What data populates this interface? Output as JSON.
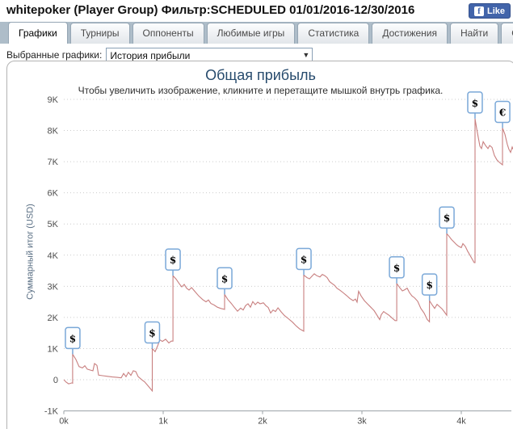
{
  "header": {
    "title": "whitepoker (Player Group) Фильтр:SCHEDULED 01/01/2016-12/30/2016",
    "fb_like": {
      "f": "f",
      "label": "Like"
    }
  },
  "tabs": [
    {
      "label": "Графики",
      "active": true
    },
    {
      "label": "Турниры",
      "active": false
    },
    {
      "label": "Оппоненты",
      "active": false
    },
    {
      "label": "Любимые игры",
      "active": false
    },
    {
      "label": "Статистика",
      "active": false
    },
    {
      "label": "Достижения",
      "active": false
    },
    {
      "label": "Найти",
      "active": false
    },
    {
      "label": "Опубликовать",
      "active": false
    }
  ],
  "filter": {
    "label": "Выбранные графики:",
    "selected": "История прибыли",
    "arrow": "▼"
  },
  "chart_data": {
    "type": "line",
    "title": "Общая прибыль",
    "subtitle": "Чтобы увеличить изображение, кликните и перетащите мышкой внутрь графика.",
    "ylabel": "Суммарный итог (USD)",
    "xlim": [
      0,
      4520
    ],
    "ylim": [
      -1000,
      9000
    ],
    "grid": "dotted",
    "x_ticks": [
      {
        "v": 0,
        "label": "0k"
      },
      {
        "v": 1000,
        "label": "1k"
      },
      {
        "v": 2000,
        "label": "2k"
      },
      {
        "v": 3000,
        "label": "3k"
      },
      {
        "v": 4000,
        "label": "4k"
      }
    ],
    "y_ticks": [
      {
        "v": 9000,
        "label": "9K"
      },
      {
        "v": 8000,
        "label": "8K"
      },
      {
        "v": 7000,
        "label": "7K"
      },
      {
        "v": 6000,
        "label": "6K"
      },
      {
        "v": 5000,
        "label": "5K"
      },
      {
        "v": 4000,
        "label": "4K"
      },
      {
        "v": 3000,
        "label": "3K"
      },
      {
        "v": 2000,
        "label": "2K"
      },
      {
        "v": 1000,
        "label": "1K"
      },
      {
        "v": 0,
        "label": "0"
      },
      {
        "v": -1000,
        "label": "-1K"
      }
    ],
    "line_color": "#c87f7f",
    "marker_border_color": "#7aa8d8",
    "marker_fill_color": "#fdfeff",
    "title_color": "#274b6d",
    "series": [
      {
        "name": "Суммарный итог (USD)",
        "points": [
          [
            0,
            0
          ],
          [
            24,
            -80
          ],
          [
            49,
            -130
          ],
          [
            81,
            -100
          ],
          [
            89,
            -110
          ],
          [
            89,
            820
          ],
          [
            122,
            650
          ],
          [
            154,
            420
          ],
          [
            187,
            380
          ],
          [
            211,
            450
          ],
          [
            236,
            340
          ],
          [
            268,
            310
          ],
          [
            293,
            290
          ],
          [
            309,
            520
          ],
          [
            333,
            460
          ],
          [
            350,
            150
          ],
          [
            390,
            130
          ],
          [
            439,
            110
          ],
          [
            488,
            90
          ],
          [
            537,
            75
          ],
          [
            577,
            60
          ],
          [
            602,
            200
          ],
          [
            626,
            100
          ],
          [
            650,
            240
          ],
          [
            675,
            140
          ],
          [
            699,
            290
          ],
          [
            724,
            260
          ],
          [
            748,
            100
          ],
          [
            781,
            10
          ],
          [
            813,
            -70
          ],
          [
            846,
            -190
          ],
          [
            890,
            -360
          ],
          [
            890,
            1000
          ],
          [
            919,
            900
          ],
          [
            943,
            1080
          ],
          [
            967,
            1280
          ],
          [
            992,
            1230
          ],
          [
            1024,
            1300
          ],
          [
            1057,
            1180
          ],
          [
            1081,
            1240
          ],
          [
            1098,
            1240
          ],
          [
            1098,
            3340
          ],
          [
            1130,
            3230
          ],
          [
            1163,
            3080
          ],
          [
            1187,
            2980
          ],
          [
            1211,
            3060
          ],
          [
            1236,
            2940
          ],
          [
            1260,
            2880
          ],
          [
            1285,
            2960
          ],
          [
            1317,
            2840
          ],
          [
            1358,
            2690
          ],
          [
            1398,
            2570
          ],
          [
            1431,
            2500
          ],
          [
            1455,
            2560
          ],
          [
            1480,
            2450
          ],
          [
            1512,
            2400
          ],
          [
            1545,
            2330
          ],
          [
            1577,
            2290
          ],
          [
            1618,
            2260
          ],
          [
            1618,
            2740
          ],
          [
            1650,
            2580
          ],
          [
            1683,
            2460
          ],
          [
            1715,
            2330
          ],
          [
            1748,
            2200
          ],
          [
            1780,
            2300
          ],
          [
            1805,
            2240
          ],
          [
            1829,
            2380
          ],
          [
            1854,
            2440
          ],
          [
            1878,
            2330
          ],
          [
            1902,
            2510
          ],
          [
            1927,
            2410
          ],
          [
            1951,
            2490
          ],
          [
            1976,
            2440
          ],
          [
            2008,
            2470
          ],
          [
            2033,
            2380
          ],
          [
            2057,
            2320
          ],
          [
            2081,
            2140
          ],
          [
            2106,
            2240
          ],
          [
            2130,
            2190
          ],
          [
            2155,
            2310
          ],
          [
            2187,
            2180
          ],
          [
            2220,
            2060
          ],
          [
            2260,
            1960
          ],
          [
            2301,
            1850
          ],
          [
            2341,
            1720
          ],
          [
            2374,
            1630
          ],
          [
            2415,
            1560
          ],
          [
            2415,
            3360
          ],
          [
            2447,
            3280
          ],
          [
            2472,
            3240
          ],
          [
            2496,
            3320
          ],
          [
            2520,
            3400
          ],
          [
            2545,
            3340
          ],
          [
            2577,
            3300
          ],
          [
            2602,
            3380
          ],
          [
            2626,
            3340
          ],
          [
            2650,
            3280
          ],
          [
            2675,
            3150
          ],
          [
            2699,
            3090
          ],
          [
            2724,
            3030
          ],
          [
            2748,
            2940
          ],
          [
            2781,
            2870
          ],
          [
            2813,
            2790
          ],
          [
            2846,
            2700
          ],
          [
            2878,
            2610
          ],
          [
            2911,
            2540
          ],
          [
            2935,
            2590
          ],
          [
            2951,
            2490
          ],
          [
            2967,
            2840
          ],
          [
            2992,
            2690
          ],
          [
            3024,
            2540
          ],
          [
            3057,
            2430
          ],
          [
            3089,
            2330
          ],
          [
            3122,
            2220
          ],
          [
            3154,
            2060
          ],
          [
            3179,
            1930
          ],
          [
            3195,
            2090
          ],
          [
            3219,
            2190
          ],
          [
            3244,
            2130
          ],
          [
            3268,
            2080
          ],
          [
            3301,
            1990
          ],
          [
            3333,
            1900
          ],
          [
            3350,
            1900
          ],
          [
            3350,
            3090
          ],
          [
            3382,
            2950
          ],
          [
            3407,
            2850
          ],
          [
            3431,
            2890
          ],
          [
            3455,
            2940
          ],
          [
            3480,
            2790
          ],
          [
            3504,
            2690
          ],
          [
            3529,
            2630
          ],
          [
            3561,
            2520
          ],
          [
            3593,
            2290
          ],
          [
            3626,
            2140
          ],
          [
            3658,
            1930
          ],
          [
            3680,
            1860
          ],
          [
            3680,
            2540
          ],
          [
            3707,
            2400
          ],
          [
            3732,
            2290
          ],
          [
            3756,
            2420
          ],
          [
            3780,
            2350
          ],
          [
            3805,
            2280
          ],
          [
            3829,
            2180
          ],
          [
            3854,
            2070
          ],
          [
            3854,
            4690
          ],
          [
            3878,
            4600
          ],
          [
            3902,
            4500
          ],
          [
            3927,
            4420
          ],
          [
            3951,
            4340
          ],
          [
            3976,
            4280
          ],
          [
            4000,
            4240
          ],
          [
            4016,
            4370
          ],
          [
            4041,
            4280
          ],
          [
            4065,
            4120
          ],
          [
            4089,
            3990
          ],
          [
            4114,
            3850
          ],
          [
            4130,
            3760
          ],
          [
            4138,
            3760
          ],
          [
            4138,
            8380
          ],
          [
            4155,
            8050
          ],
          [
            4171,
            7780
          ],
          [
            4187,
            7500
          ],
          [
            4203,
            7420
          ],
          [
            4220,
            7640
          ],
          [
            4244,
            7520
          ],
          [
            4268,
            7420
          ],
          [
            4285,
            7520
          ],
          [
            4309,
            7460
          ],
          [
            4333,
            7200
          ],
          [
            4358,
            7060
          ],
          [
            4382,
            6980
          ],
          [
            4415,
            6900
          ],
          [
            4415,
            8080
          ],
          [
            4439,
            7880
          ],
          [
            4463,
            7560
          ],
          [
            4479,
            7400
          ],
          [
            4496,
            7300
          ],
          [
            4512,
            7470
          ],
          [
            4520,
            7400
          ]
        ]
      }
    ],
    "markers": [
      {
        "x": 89,
        "y": 820,
        "label": "$"
      },
      {
        "x": 890,
        "y": 1000,
        "label": "$"
      },
      {
        "x": 1098,
        "y": 3340,
        "label": "$"
      },
      {
        "x": 1618,
        "y": 2740,
        "label": "$"
      },
      {
        "x": 2415,
        "y": 3360,
        "label": "$"
      },
      {
        "x": 3350,
        "y": 3090,
        "label": "$"
      },
      {
        "x": 3680,
        "y": 2540,
        "label": "$"
      },
      {
        "x": 3854,
        "y": 4690,
        "label": "$"
      },
      {
        "x": 4138,
        "y": 8380,
        "label": "$"
      },
      {
        "x": 4415,
        "y": 8080,
        "label": "€"
      }
    ]
  }
}
